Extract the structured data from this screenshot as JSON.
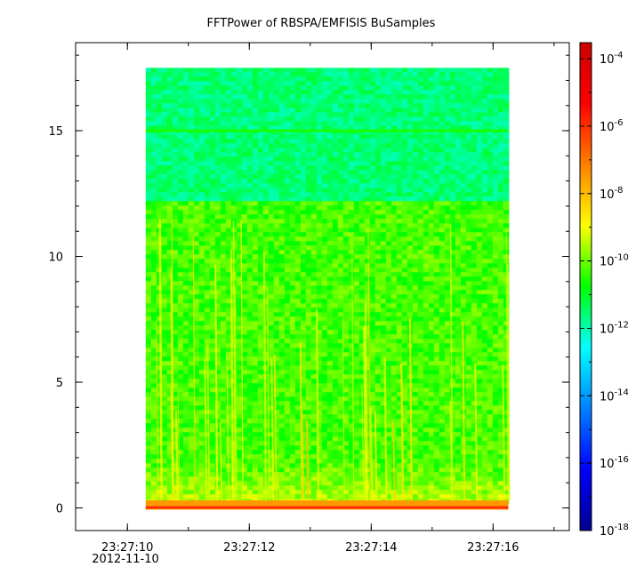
{
  "chart_data": {
    "type": "heatmap",
    "title": "FFTPower of RBSPA/EMFISIS  BuSamples",
    "xlabel": "",
    "ylabel": "",
    "x_axis": {
      "type": "time",
      "date_label": "2012-11-10",
      "range_seconds": [
        9.15,
        17.25
      ],
      "major_ticks": [
        {
          "t": 10,
          "label": "23:27:10"
        },
        {
          "t": 12,
          "label": "23:27:12"
        },
        {
          "t": 14,
          "label": "23:27:14"
        },
        {
          "t": 16,
          "label": "23:27:16"
        }
      ],
      "minor_tick_step": 1
    },
    "y_axis": {
      "range": [
        -0.9,
        18.5
      ],
      "major_ticks": [
        0,
        5,
        10,
        15
      ],
      "tick_labels": [
        "0",
        "5",
        "10",
        "15"
      ],
      "minor_tick_step": 1
    },
    "colorbar": {
      "scale": "log",
      "range": [
        1e-18,
        0.0003
      ],
      "ticks": [
        {
          "exp": -18,
          "base": "10",
          "sup": "-18"
        },
        {
          "exp": -16,
          "base": "10",
          "sup": "-16"
        },
        {
          "exp": -14,
          "base": "10",
          "sup": "-14"
        },
        {
          "exp": -12,
          "base": "10",
          "sup": "-12"
        },
        {
          "exp": -10,
          "base": "10",
          "sup": "-10"
        },
        {
          "exp": -8,
          "base": "10",
          "sup": "-8"
        },
        {
          "exp": -6,
          "base": "10",
          "sup": "-6"
        },
        {
          "exp": -4,
          "base": "10",
          "sup": "-4"
        }
      ],
      "colormap": [
        "#00008f",
        "#0000ff",
        "#0080ff",
        "#00ffff",
        "#00ff00",
        "#ffff00",
        "#ff8000",
        "#ff0000",
        "#cc0000"
      ]
    },
    "data_extent": {
      "t_start": 10.3,
      "t_end": 16.25,
      "f_min": 0,
      "f_max": 17.5
    },
    "features": [
      {
        "name": "upper band",
        "f_range": [
          12.2,
          17.5
        ],
        "log_power": -11.6
      },
      {
        "name": "main band",
        "f_range": [
          0,
          12.2
        ],
        "log_power": -10.3
      },
      {
        "name": "line at 15",
        "f": 15,
        "log_power": -10.6
      },
      {
        "name": "low-frequency band",
        "f_range": [
          0,
          0.3
        ],
        "log_power": -7.5
      }
    ]
  }
}
